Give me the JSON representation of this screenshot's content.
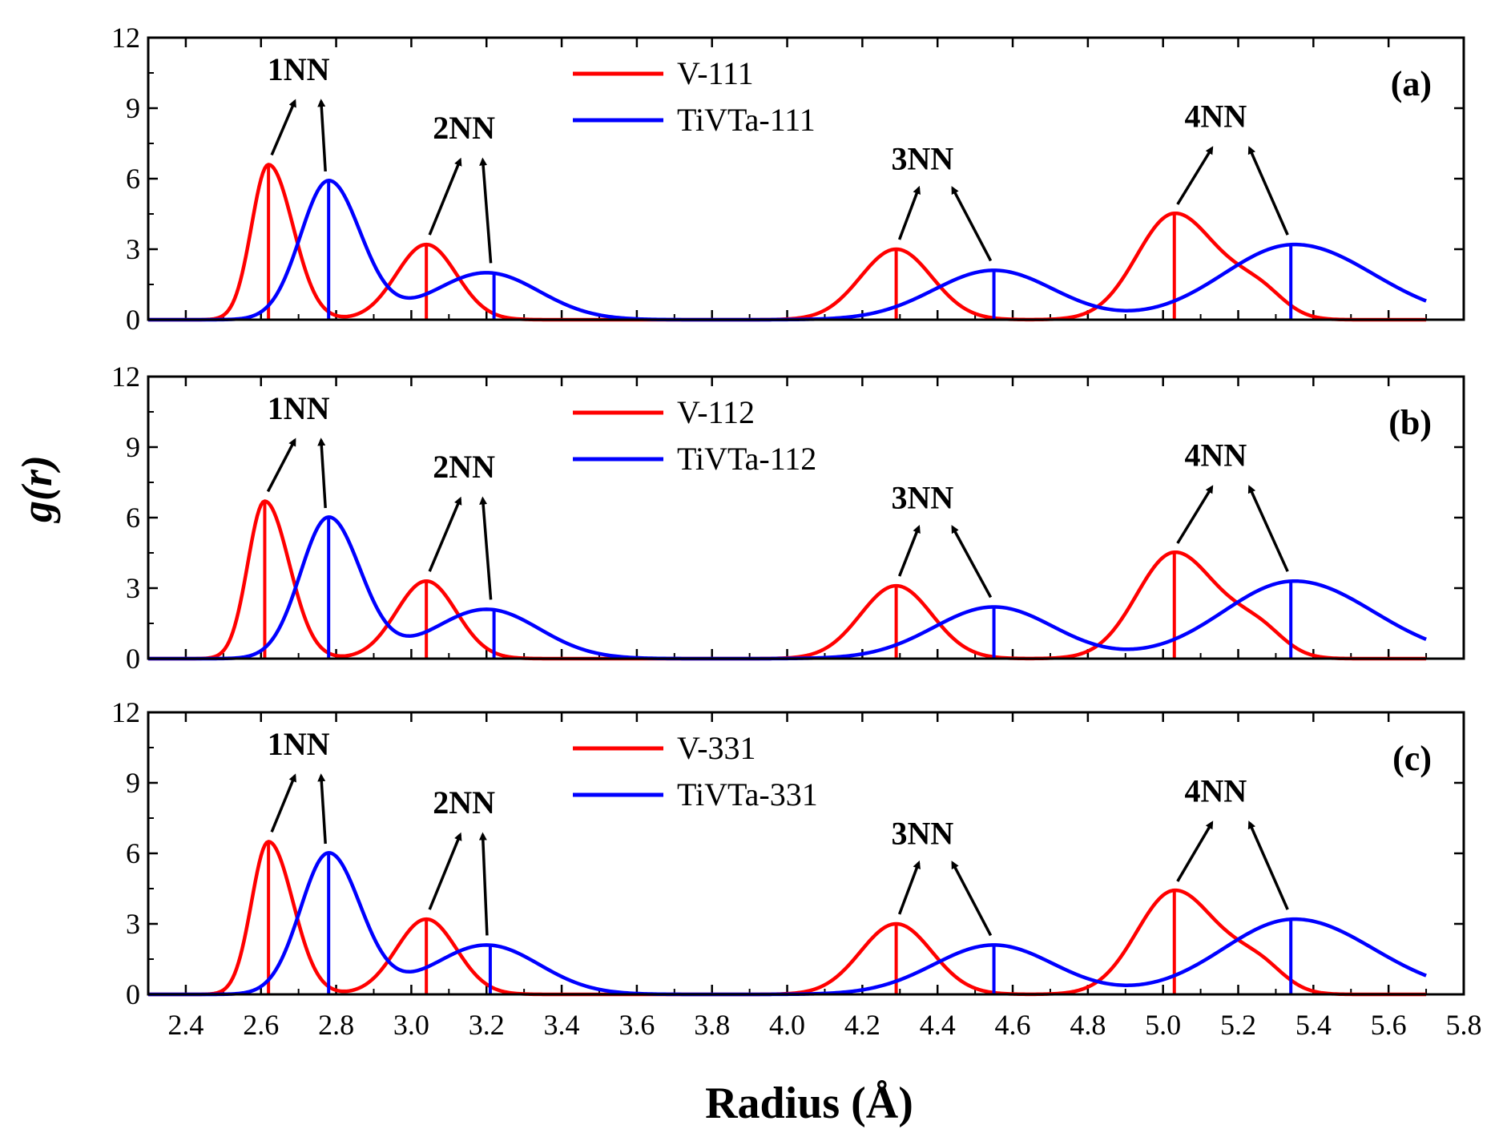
{
  "colors": {
    "red": "#ff0000",
    "blue": "#0000ff",
    "axis": "#000000"
  },
  "chart_data": {
    "type": "line",
    "xlabel": "Radius (Å)",
    "ylabel": "g(r)",
    "xlim": [
      2.3,
      5.8
    ],
    "ylim": [
      0,
      12
    ],
    "xticks": [
      "2.4",
      "2.6",
      "2.8",
      "3.0",
      "3.2",
      "3.4",
      "3.6",
      "3.8",
      "4.0",
      "4.2",
      "4.4",
      "4.6",
      "4.8",
      "5.0",
      "5.2",
      "5.4",
      "5.6",
      "5.8"
    ],
    "yticks": [
      "0",
      "3",
      "6",
      "9",
      "12"
    ],
    "x_range_data": [
      2.3,
      5.7
    ],
    "shared_x_axis": true,
    "legend_position": "top-center",
    "panels": [
      {
        "label": "(a)",
        "series": [
          {
            "name": "V-111",
            "color": "red",
            "peaks": [
              {
                "x": 2.62,
                "y": 6.6,
                "w_left": 0.045,
                "w_right": 0.065
              },
              {
                "x": 3.04,
                "y": 3.2,
                "w_left": 0.08,
                "w_right": 0.08
              },
              {
                "x": 4.29,
                "y": 3.0,
                "w_left": 0.095,
                "w_right": 0.095
              },
              {
                "x": 5.03,
                "y": 4.5,
                "w_left": 0.1,
                "w_right": 0.11
              },
              {
                "x": 5.25,
                "y": 1.2,
                "w_left": 0.08,
                "w_right": 0.07
              }
            ],
            "markers": [
              {
                "x": 2.62,
                "y": 6.6
              },
              {
                "x": 3.04,
                "y": 3.2
              },
              {
                "x": 4.29,
                "y": 3.0
              },
              {
                "x": 5.03,
                "y": 4.5
              }
            ]
          },
          {
            "name": "TiVTa-111",
            "color": "blue",
            "peaks": [
              {
                "x": 2.78,
                "y": 5.9,
                "w_left": 0.075,
                "w_right": 0.085
              },
              {
                "x": 3.2,
                "y": 2.0,
                "w_left": 0.14,
                "w_right": 0.14
              },
              {
                "x": 4.55,
                "y": 2.1,
                "w_left": 0.16,
                "w_right": 0.16
              },
              {
                "x": 5.35,
                "y": 3.2,
                "w_left": 0.19,
                "w_right": 0.21
              }
            ],
            "markers": [
              {
                "x": 2.78,
                "y": 5.9
              },
              {
                "x": 3.22,
                "y": 2.0
              },
              {
                "x": 4.55,
                "y": 2.1
              },
              {
                "x": 5.34,
                "y": 3.2
              }
            ]
          }
        ],
        "annotations": [
          {
            "text": "1NN"
          },
          {
            "text": "2NN"
          },
          {
            "text": "3NN"
          },
          {
            "text": "4NN"
          }
        ]
      },
      {
        "label": "(b)",
        "series": [
          {
            "name": "V-112",
            "color": "red",
            "peaks": [
              {
                "x": 2.61,
                "y": 6.7,
                "w_left": 0.045,
                "w_right": 0.065
              },
              {
                "x": 3.04,
                "y": 3.3,
                "w_left": 0.08,
                "w_right": 0.08
              },
              {
                "x": 4.29,
                "y": 3.1,
                "w_left": 0.095,
                "w_right": 0.095
              },
              {
                "x": 5.03,
                "y": 4.5,
                "w_left": 0.1,
                "w_right": 0.11
              },
              {
                "x": 5.25,
                "y": 1.2,
                "w_left": 0.08,
                "w_right": 0.07
              }
            ],
            "markers": [
              {
                "x": 2.61,
                "y": 6.7
              },
              {
                "x": 3.04,
                "y": 3.3
              },
              {
                "x": 4.29,
                "y": 3.1
              },
              {
                "x": 5.03,
                "y": 4.5
              }
            ]
          },
          {
            "name": "TiVTa-112",
            "color": "blue",
            "peaks": [
              {
                "x": 2.78,
                "y": 6.0,
                "w_left": 0.075,
                "w_right": 0.085
              },
              {
                "x": 3.2,
                "y": 2.1,
                "w_left": 0.14,
                "w_right": 0.14
              },
              {
                "x": 4.55,
                "y": 2.2,
                "w_left": 0.16,
                "w_right": 0.16
              },
              {
                "x": 5.35,
                "y": 3.3,
                "w_left": 0.19,
                "w_right": 0.21
              }
            ],
            "markers": [
              {
                "x": 2.78,
                "y": 6.0
              },
              {
                "x": 3.22,
                "y": 2.1
              },
              {
                "x": 4.55,
                "y": 2.2
              },
              {
                "x": 5.34,
                "y": 3.3
              }
            ]
          }
        ],
        "annotations": [
          {
            "text": "1NN"
          },
          {
            "text": "2NN"
          },
          {
            "text": "3NN"
          },
          {
            "text": "4NN"
          }
        ]
      },
      {
        "label": "(c)",
        "series": [
          {
            "name": "V-331",
            "color": "red",
            "peaks": [
              {
                "x": 2.62,
                "y": 6.5,
                "w_left": 0.045,
                "w_right": 0.065
              },
              {
                "x": 3.04,
                "y": 3.2,
                "w_left": 0.08,
                "w_right": 0.08
              },
              {
                "x": 4.29,
                "y": 3.0,
                "w_left": 0.095,
                "w_right": 0.095
              },
              {
                "x": 5.03,
                "y": 4.4,
                "w_left": 0.1,
                "w_right": 0.11
              },
              {
                "x": 5.25,
                "y": 1.2,
                "w_left": 0.08,
                "w_right": 0.07
              }
            ],
            "markers": [
              {
                "x": 2.62,
                "y": 6.5
              },
              {
                "x": 3.04,
                "y": 3.2
              },
              {
                "x": 4.29,
                "y": 3.0
              },
              {
                "x": 5.03,
                "y": 4.4
              }
            ]
          },
          {
            "name": "TiVTa-331",
            "color": "blue",
            "peaks": [
              {
                "x": 2.78,
                "y": 6.0,
                "w_left": 0.075,
                "w_right": 0.085
              },
              {
                "x": 3.2,
                "y": 2.1,
                "w_left": 0.14,
                "w_right": 0.14
              },
              {
                "x": 4.55,
                "y": 2.1,
                "w_left": 0.16,
                "w_right": 0.16
              },
              {
                "x": 5.35,
                "y": 3.2,
                "w_left": 0.19,
                "w_right": 0.21
              }
            ],
            "markers": [
              {
                "x": 2.78,
                "y": 6.0
              },
              {
                "x": 3.21,
                "y": 2.1
              },
              {
                "x": 4.55,
                "y": 2.1
              },
              {
                "x": 5.34,
                "y": 3.2
              }
            ]
          }
        ],
        "annotations": [
          {
            "text": "1NN"
          },
          {
            "text": "2NN"
          },
          {
            "text": "3NN"
          },
          {
            "text": "4NN"
          }
        ]
      }
    ]
  }
}
